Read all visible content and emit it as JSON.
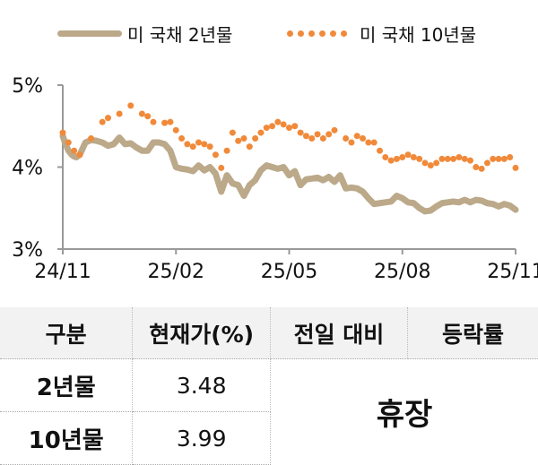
{
  "legend": {
    "series_2y": "미 국채 2년물",
    "series_10y": "미 국채 10년물"
  },
  "chart_data": {
    "type": "line",
    "title": "",
    "xlabel": "",
    "ylabel": "",
    "ylim": [
      3,
      5
    ],
    "yticks": [
      "3%",
      "4%",
      "5%"
    ],
    "xticks": [
      "24/11",
      "25/02",
      "25/05",
      "25/08",
      "25/11"
    ],
    "grid": false,
    "legend_position": "top",
    "colors": {
      "series_2y": "#bba98a",
      "series_10y": "#f08a3a"
    },
    "series": [
      {
        "name": "미 국채 2년물",
        "style": "thick solid line",
        "x": [
          0,
          0.02,
          0.05,
          0.08,
          0.1,
          0.12,
          0.15,
          0.2,
          0.25,
          0.3,
          0.35,
          0.4,
          0.45,
          0.5,
          0.55,
          0.6,
          0.65,
          0.7,
          0.75,
          0.8,
          0.85,
          0.9,
          0.95,
          1.0,
          1.05,
          1.1,
          1.15,
          1.2,
          1.25,
          1.3,
          1.35,
          1.4,
          1.45,
          1.5,
          1.55,
          1.6,
          1.65,
          1.7,
          1.75,
          1.8,
          1.85,
          1.9,
          1.95,
          2.0,
          2.05,
          2.1,
          2.15,
          2.2,
          2.25,
          2.3,
          2.35,
          2.4,
          2.45,
          2.5,
          2.55,
          2.6,
          2.65,
          2.7,
          2.75,
          2.8,
          2.85,
          2.9,
          2.95,
          3.0,
          3.05,
          3.1,
          3.15,
          3.2,
          3.25,
          3.3,
          3.35,
          3.4,
          3.45,
          3.5,
          3.55,
          3.6,
          3.65,
          3.7,
          3.75,
          3.8,
          3.85,
          3.9,
          3.95,
          4.0
        ],
        "values": [
          4.38,
          4.3,
          4.2,
          4.15,
          4.13,
          4.12,
          4.15,
          4.3,
          4.33,
          4.32,
          4.3,
          4.26,
          4.28,
          4.36,
          4.28,
          4.29,
          4.24,
          4.2,
          4.2,
          4.3,
          4.3,
          4.28,
          4.2,
          4.0,
          3.98,
          3.97,
          3.95,
          4.02,
          3.96,
          4.0,
          3.92,
          3.7,
          3.9,
          3.8,
          3.78,
          3.65,
          3.78,
          3.84,
          3.96,
          4.02,
          4.0,
          3.98,
          4.0,
          3.9,
          3.95,
          3.78,
          3.85,
          3.86,
          3.87,
          3.84,
          3.88,
          3.82,
          3.9,
          3.74,
          3.75,
          3.74,
          3.7,
          3.62,
          3.55,
          3.56,
          3.57,
          3.58,
          3.65,
          3.62,
          3.57,
          3.56,
          3.5,
          3.46,
          3.47,
          3.52,
          3.56,
          3.57,
          3.58,
          3.57,
          3.6,
          3.57,
          3.6,
          3.59,
          3.56,
          3.55,
          3.52,
          3.55,
          3.53,
          3.48
        ]
      },
      {
        "name": "미 국채 10년물",
        "style": "dotted",
        "x": [
          0,
          0.05,
          0.1,
          0.15,
          0.25,
          0.35,
          0.4,
          0.5,
          0.6,
          0.7,
          0.75,
          0.8,
          0.9,
          0.95,
          1.0,
          1.05,
          1.1,
          1.15,
          1.2,
          1.25,
          1.3,
          1.35,
          1.4,
          1.45,
          1.5,
          1.55,
          1.6,
          1.65,
          1.7,
          1.75,
          1.8,
          1.85,
          1.9,
          1.95,
          2.0,
          2.05,
          2.1,
          2.15,
          2.2,
          2.25,
          2.3,
          2.35,
          2.4,
          2.5,
          2.55,
          2.6,
          2.65,
          2.7,
          2.75,
          2.8,
          2.85,
          2.9,
          2.95,
          3.0,
          3.05,
          3.1,
          3.15,
          3.2,
          3.25,
          3.3,
          3.35,
          3.4,
          3.45,
          3.5,
          3.55,
          3.6,
          3.65,
          3.7,
          3.75,
          3.8,
          3.85,
          3.9,
          3.95,
          4.0
        ],
        "values": [
          4.42,
          4.3,
          4.2,
          4.15,
          4.35,
          4.55,
          4.6,
          4.65,
          4.75,
          4.65,
          4.62,
          4.55,
          4.54,
          4.55,
          4.45,
          4.35,
          4.28,
          4.25,
          4.3,
          4.28,
          4.25,
          4.15,
          3.99,
          4.2,
          4.42,
          4.32,
          4.35,
          4.25,
          4.35,
          4.42,
          4.48,
          4.5,
          4.55,
          4.52,
          4.48,
          4.5,
          4.42,
          4.38,
          4.35,
          4.4,
          4.35,
          4.4,
          4.45,
          4.35,
          4.3,
          4.38,
          4.35,
          4.3,
          4.3,
          4.2,
          4.12,
          4.08,
          4.1,
          4.12,
          4.15,
          4.12,
          4.1,
          4.05,
          4.02,
          4.05,
          4.1,
          4.1,
          4.1,
          4.12,
          4.1,
          4.08,
          4.0,
          3.98,
          4.05,
          4.1,
          4.1,
          4.1,
          4.12,
          3.99
        ]
      }
    ]
  },
  "table": {
    "headers": [
      "구분",
      "현재가(%)",
      "전일 대비",
      "등락률"
    ],
    "rows": [
      {
        "label": "2년물",
        "price": "3.48"
      },
      {
        "label": "10년물",
        "price": "3.99"
      }
    ],
    "merged_status": "휴장"
  }
}
